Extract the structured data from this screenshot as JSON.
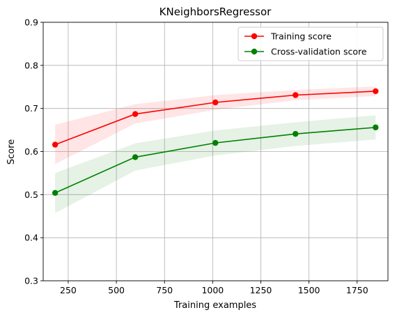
{
  "chart_data": {
    "type": "line",
    "title": "KNeighborsRegressor",
    "xlabel": "Training examples",
    "ylabel": "Score",
    "xlim": [
      120,
      1910
    ],
    "ylim": [
      0.3,
      0.9
    ],
    "x_ticks": [
      250,
      500,
      750,
      1000,
      1250,
      1500,
      1750
    ],
    "y_ticks": [
      0.3,
      0.4,
      0.5,
      0.6,
      0.7,
      0.8,
      0.9
    ],
    "x_tick_labels": [
      "250",
      "500",
      "750",
      "1000",
      "1250",
      "1500",
      "1750"
    ],
    "y_tick_labels": [
      "0.3",
      "0.4",
      "0.5",
      "0.6",
      "0.7",
      "0.8",
      "0.9"
    ],
    "grid": true,
    "legend_position": "top-right",
    "x": [
      182,
      598,
      1014,
      1430,
      1846
    ],
    "series": [
      {
        "name": "Training score",
        "color": "#ff0000",
        "band_color": "#ff0000",
        "values": [
          0.616,
          0.687,
          0.714,
          0.731,
          0.74
        ],
        "lower": [
          0.571,
          0.665,
          0.697,
          0.719,
          0.729
        ],
        "upper": [
          0.662,
          0.71,
          0.731,
          0.743,
          0.751
        ]
      },
      {
        "name": "Cross-validation score",
        "color": "#008000",
        "band_color": "#008000",
        "values": [
          0.504,
          0.587,
          0.62,
          0.641,
          0.656
        ],
        "lower": [
          0.457,
          0.556,
          0.591,
          0.613,
          0.628
        ],
        "upper": [
          0.55,
          0.619,
          0.649,
          0.668,
          0.684
        ]
      }
    ]
  }
}
